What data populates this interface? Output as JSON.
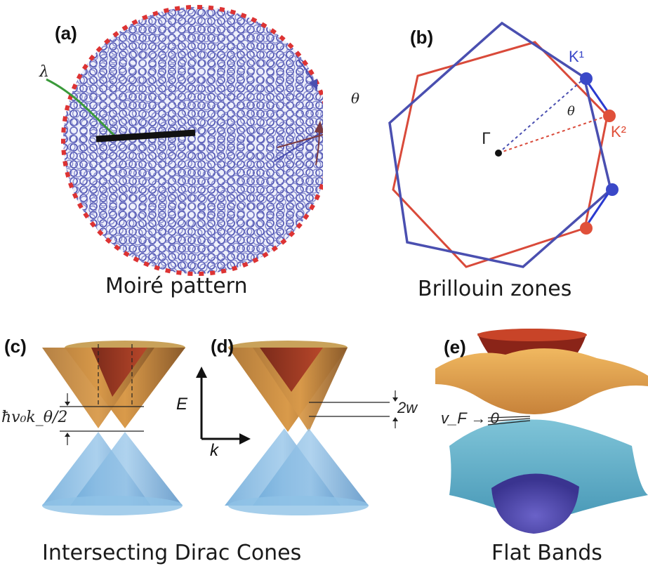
{
  "panels": {
    "a": {
      "tag": "(a)",
      "lambda": "λ",
      "theta": "θ",
      "caption": "Moiré pattern"
    },
    "b": {
      "tag": "(b)",
      "gamma": "Γ",
      "theta": "θ",
      "k1": "K¹",
      "k2": "K²",
      "caption": "Brillouin zones"
    },
    "c": {
      "tag": "(c)",
      "gap_label": "ħv₀k_θ/2"
    },
    "d": {
      "tag": "(d)",
      "e_axis": "E",
      "k_axis": "k",
      "w_label": "2w"
    },
    "cd_caption": "Intersecting Dirac Cones",
    "e": {
      "tag": "(e)",
      "vf_label": "v_F → 0",
      "caption": "Flat Bands"
    }
  },
  "colors": {
    "blue": "#4a4fb0",
    "red": "#d94a3a",
    "green": "#3a9a3a",
    "black": "#111111"
  }
}
